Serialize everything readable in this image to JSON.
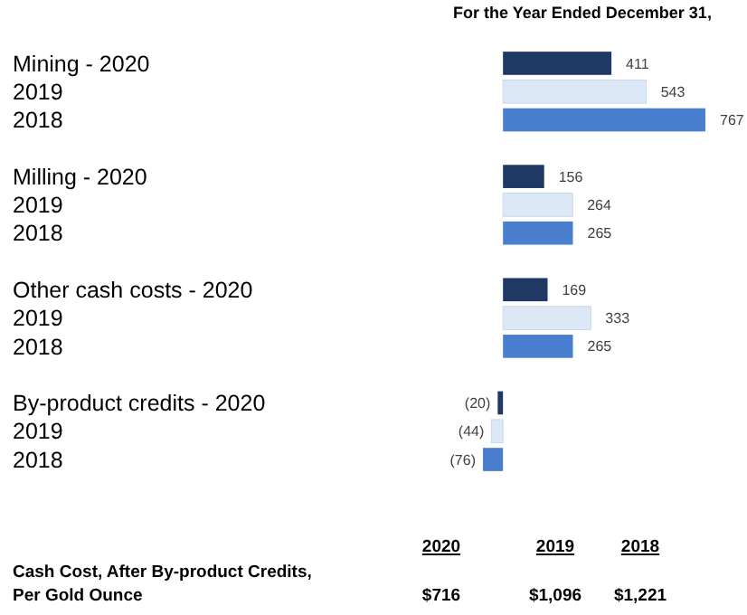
{
  "chart_data": {
    "type": "bar",
    "orientation": "horizontal",
    "title": "For the Year Ended December 31,",
    "categories": [
      "Mining - 2020",
      "2019",
      "2018",
      null,
      "Milling - 2020",
      "2019",
      "2018",
      null,
      "Other cash costs - 2020",
      "2019",
      "2018",
      null,
      "By-product credits - 2020",
      "2019",
      "2018"
    ],
    "values": [
      411,
      543,
      767,
      null,
      156,
      264,
      265,
      null,
      169,
      333,
      265,
      null,
      -20,
      -44,
      -76
    ],
    "colors": [
      "#1f3864",
      "#dde8f7",
      "#4a7fd0",
      null,
      "#1f3864",
      "#dde8f7",
      "#4a7fd0",
      null,
      "#1f3864",
      "#dde8f7",
      "#4a7fd0",
      null,
      "#1f3864",
      "#dde8f7",
      "#4a7fd0"
    ],
    "value_labels": [
      "411",
      "543",
      "767",
      null,
      "156",
      "264",
      "265",
      null,
      "169",
      "333",
      "265",
      null,
      "(20)",
      "(44)",
      "(76)"
    ],
    "annotations": [
      "2020",
      "2019",
      "2018",
      "Cash Cost, After By-product Credits, Per Gold Ounce",
      "$716",
      "$1,096",
      "$1,221"
    ]
  }
}
